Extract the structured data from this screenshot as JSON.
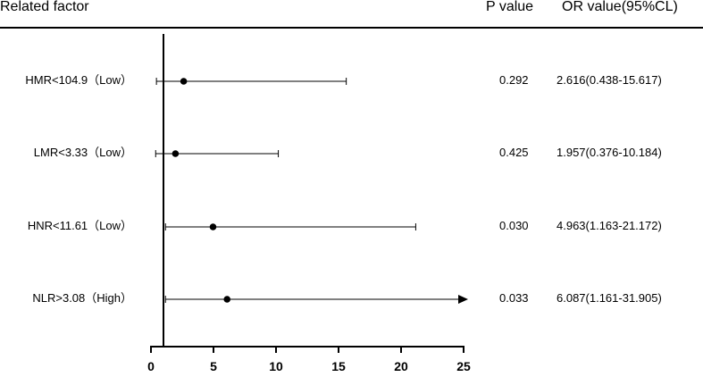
{
  "chart_data": {
    "type": "forest",
    "columns": {
      "factor": "Related factor",
      "p": "P value",
      "or": "OR value(95%CL)"
    },
    "rows": [
      {
        "label": "HMR<104.9（Low）",
        "or": 2.616,
        "ci_low": 0.438,
        "ci_high": 15.617,
        "p": "0.292",
        "or_text": "2.616(0.438-15.617)",
        "truncated": false
      },
      {
        "label": "LMR<3.33（Low）",
        "or": 1.957,
        "ci_low": 0.376,
        "ci_high": 10.184,
        "p": "0.425",
        "or_text": "1.957(0.376-10.184)",
        "truncated": false
      },
      {
        "label": "HNR<11.61（Low）",
        "or": 4.963,
        "ci_low": 1.163,
        "ci_high": 21.172,
        "p": "0.030",
        "or_text": "4.963(1.163-21.172)",
        "truncated": false
      },
      {
        "label": "NLR>3.08（High）",
        "or": 6.087,
        "ci_low": 1.161,
        "ci_high": 31.905,
        "p": "0.033",
        "or_text": "6.087(1.161-31.905)",
        "truncated": true
      }
    ],
    "xlim": [
      0,
      25
    ],
    "xticks": [
      0,
      5,
      10,
      15,
      20,
      25
    ],
    "reference_line": 1
  }
}
